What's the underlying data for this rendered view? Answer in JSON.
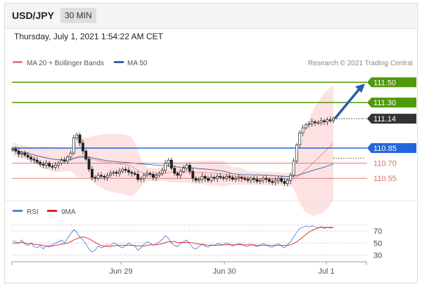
{
  "header": {
    "pair": "USD/JPY",
    "timeframe": "30 MIN",
    "datetime": "Thursday, July 1, 2021 1:54:22 AM CET"
  },
  "legend": {
    "bollinger": "MA 20 + Bollinger Bands",
    "ma50": "MA 50",
    "credit": "Research © 2021 Trading Central",
    "rsi": "RSI",
    "rsi_ma": "9MA"
  },
  "colors": {
    "bollinger": "#f08080",
    "ma50": "#3a62a7",
    "resistance": "#4f9a0a",
    "support_blue": "#2266dd",
    "support_red": "#e36a6a",
    "current": "#333333",
    "rsi": "#5b7fdc",
    "rsi_ma": "#e02020"
  },
  "chart_data": [
    {
      "type": "candlestick",
      "title": "USD/JPY 30 MIN",
      "ylim": [
        110.35,
        111.62
      ],
      "x_labels": [
        "Jun 29",
        "Jun 30",
        "Jul 1"
      ],
      "levels": [
        {
          "label": "111.50",
          "value": 111.5,
          "kind": "resistance"
        },
        {
          "label": "111.30",
          "value": 111.3,
          "kind": "resistance"
        },
        {
          "label": "111.14",
          "value": 111.14,
          "kind": "current"
        },
        {
          "label": "110.85",
          "value": 110.85,
          "kind": "pivot"
        },
        {
          "label": "110.70",
          "value": 110.7,
          "kind": "support"
        },
        {
          "label": "110.55",
          "value": 110.55,
          "kind": "support"
        }
      ],
      "close_series": [
        110.84,
        110.82,
        110.79,
        110.8,
        110.78,
        110.76,
        110.74,
        110.73,
        110.71,
        110.69,
        110.68,
        110.7,
        110.67,
        110.66,
        110.68,
        110.7,
        110.73,
        110.72,
        110.76,
        110.8,
        110.95,
        110.98,
        110.9,
        110.82,
        110.74,
        110.64,
        110.56,
        110.55,
        110.58,
        110.57,
        110.56,
        110.58,
        110.6,
        110.61,
        110.6,
        110.62,
        110.64,
        110.63,
        110.61,
        110.6,
        110.59,
        110.54,
        110.55,
        110.58,
        110.6,
        110.59,
        110.56,
        110.58,
        110.6,
        110.63,
        110.7,
        110.73,
        110.65,
        110.6,
        110.58,
        110.62,
        110.65,
        110.68,
        110.62,
        110.55,
        110.53,
        110.54,
        110.57,
        110.55,
        110.53,
        110.56,
        110.55,
        110.57,
        110.56,
        110.55,
        110.57,
        110.56,
        110.54,
        110.55,
        110.56,
        110.55,
        110.54,
        110.53,
        110.55,
        110.54,
        110.52,
        110.53,
        110.55,
        110.54,
        110.52,
        110.51,
        110.53,
        110.55,
        110.52,
        110.5,
        110.53,
        110.58,
        110.72,
        110.88,
        111.0,
        111.05,
        111.08,
        111.09,
        111.11,
        111.1,
        111.1,
        111.12,
        111.11,
        111.13,
        111.12,
        111.14
      ],
      "ma50_end": 110.75
    },
    {
      "type": "line",
      "title": "RSI",
      "series_names": [
        "RSI",
        "9MA"
      ],
      "y_ticks": [
        30,
        50,
        70
      ],
      "ylim": [
        20,
        90
      ],
      "rsi": [
        54,
        52,
        50,
        55,
        48,
        46,
        50,
        44,
        42,
        46,
        40,
        45,
        43,
        47,
        50,
        52,
        55,
        50,
        58,
        65,
        72,
        68,
        60,
        55,
        48,
        40,
        35,
        38,
        45,
        42,
        44,
        47,
        46,
        50,
        48,
        44,
        42,
        46,
        50,
        47,
        45,
        38,
        42,
        48,
        52,
        50,
        46,
        49,
        52,
        56,
        62,
        58,
        50,
        46,
        44,
        49,
        52,
        55,
        48,
        42,
        40,
        44,
        48,
        45,
        43,
        47,
        46,
        49,
        48,
        47,
        50,
        48,
        45,
        47,
        49,
        48,
        45,
        44,
        48,
        46,
        44,
        46,
        49,
        47,
        44,
        43,
        46,
        49,
        45,
        42,
        47,
        52,
        60,
        68,
        74,
        76,
        78,
        77,
        79,
        77,
        75,
        77,
        74,
        76,
        75,
        76
      ],
      "rsi_ma": [
        50,
        50,
        50,
        51,
        50,
        49,
        49,
        48,
        47,
        47,
        46,
        45,
        45,
        45,
        46,
        47,
        48,
        49,
        50,
        52,
        55,
        57,
        59,
        60,
        59,
        57,
        54,
        51,
        48,
        46,
        45,
        44,
        44,
        45,
        46,
        46,
        46,
        46,
        46,
        46,
        46,
        45,
        45,
        45,
        46,
        47,
        47,
        47,
        48,
        49,
        51,
        52,
        52,
        52,
        51,
        51,
        51,
        51,
        51,
        50,
        49,
        48,
        48,
        47,
        46,
        46,
        46,
        46,
        46,
        47,
        47,
        47,
        47,
        47,
        47,
        47,
        47,
        47,
        47,
        47,
        46,
        46,
        46,
        46,
        46,
        46,
        46,
        46,
        46,
        46,
        46,
        47,
        49,
        52,
        56,
        60,
        64,
        68,
        71,
        73,
        75,
        76,
        76,
        76,
        76,
        76
      ]
    }
  ]
}
